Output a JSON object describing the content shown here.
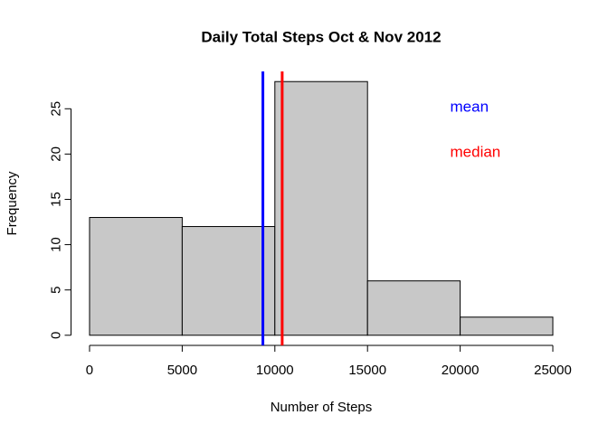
{
  "chart_data": {
    "type": "histogram",
    "title": "Daily Total Steps Oct & Nov 2012",
    "x_label": "Number of Steps",
    "y_label": "Frequency",
    "bins": [
      0,
      5000,
      10000,
      15000,
      20000,
      25000
    ],
    "values": [
      13,
      12,
      28,
      6,
      2
    ],
    "color": "#c8c8c8",
    "xlim": [
      0,
      25000
    ],
    "xticks": [
      0,
      5000,
      10000,
      15000,
      20000,
      25000
    ],
    "ylim": [
      0,
      28
    ],
    "yticks": [
      0,
      5,
      10,
      15,
      20,
      25
    ],
    "lines": [
      {
        "name": "mean",
        "value": 9354,
        "color": "#0000ff"
      },
      {
        "name": "median",
        "value": 10395,
        "color": "#ff0000"
      }
    ],
    "legend": "topright"
  }
}
